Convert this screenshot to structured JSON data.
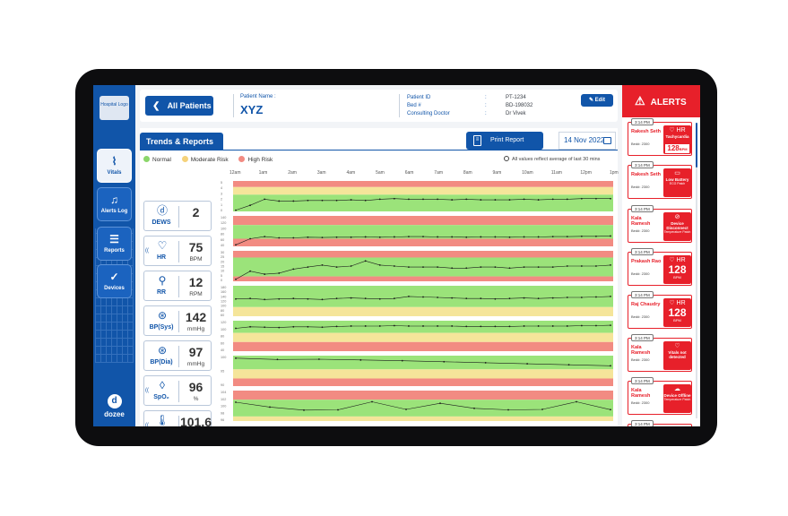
{
  "sidebar": {
    "logo_text": "Hospital Logo",
    "items": [
      {
        "label": "Vitals",
        "icon": "pulse-icon",
        "glyph": "⌇",
        "active": true
      },
      {
        "label": "Alerts Log",
        "icon": "bell-icon",
        "glyph": "♫",
        "active": false
      },
      {
        "label": "Reports",
        "icon": "document-icon",
        "glyph": "☰",
        "active": false
      },
      {
        "label": "Devices",
        "icon": "check-circle-icon",
        "glyph": "✓",
        "active": false
      }
    ],
    "brand": "dozee",
    "brand_glyph": "d"
  },
  "header": {
    "back_label": "All Patients",
    "back_glyph": "❮",
    "patient_name_label": "Patient Name :",
    "patient_name": "XYZ",
    "info_labels": [
      "Patient ID",
      "Bed #",
      "Consulting Doctor"
    ],
    "colon": ":",
    "info_values": [
      "PT-1234",
      "BD-198032",
      "Dr Vivek"
    ],
    "edit_label": "Edit",
    "edit_glyph": "✎"
  },
  "main": {
    "tab_label": "Trends & Reports",
    "print_label": "Print Report",
    "print_glyph": "≡",
    "date": "14 Nov 2022",
    "legend": [
      {
        "label": "Normal",
        "color": "#8bd66a"
      },
      {
        "label": "Moderate Risk",
        "color": "#f5d27a"
      },
      {
        "label": "High Risk",
        "color": "#f28b82"
      }
    ],
    "avg_note": "All values reflect average of last 30 mins",
    "times": [
      "12am",
      "1am",
      "2am",
      "3am",
      "4am",
      "5am",
      "6am",
      "7am",
      "8am",
      "9am",
      "10am",
      "11am",
      "12pm",
      "1pm"
    ]
  },
  "vitals": [
    {
      "name": "DEWS",
      "glyph": "ⓓ",
      "value": "2",
      "unit": "",
      "wave": false
    },
    {
      "name": "HR",
      "glyph": "♡",
      "value": "75",
      "unit": "BPM",
      "wave": true
    },
    {
      "name": "RR",
      "glyph": "⚲",
      "value": "12",
      "unit": "RPM",
      "wave": false
    },
    {
      "name": "BP(Sys)",
      "glyph": "⊛",
      "value": "142",
      "unit": "mmHg",
      "wave": false
    },
    {
      "name": "BP(Dia)",
      "glyph": "⊛",
      "value": "97",
      "unit": "mmHg",
      "wave": false
    },
    {
      "name": "SpO₂",
      "glyph": "◊",
      "value": "96",
      "unit": "%",
      "wave": true
    },
    {
      "name": "Temp",
      "glyph": "🌡",
      "value": "101.6",
      "unit": "°F",
      "wave": true
    }
  ],
  "wave_glyph": "((",
  "alerts": {
    "title": "ALERTS",
    "warn_glyph": "⚠",
    "items": [
      {
        "time": "3:14 PM",
        "name": "Rakesh Seth",
        "bed": "Bed#: 2300",
        "icon": "heart-icon",
        "glyph": "♡ HR",
        "title": "Tachycardia",
        "value": "128",
        "unit": "BPM",
        "sub": ""
      },
      {
        "time": "3:14 PM",
        "name": "Rakesh Seth",
        "bed": "Bed#: 2300",
        "icon": "battery-icon",
        "glyph": "▭",
        "title": "Low Battery",
        "value": "",
        "unit": "",
        "sub": "ECG Patch"
      },
      {
        "time": "3:14 PM",
        "name": "Kala Ramesh",
        "bed": "Bed#: 2300",
        "icon": "disconnect-icon",
        "glyph": "⊘",
        "title": "Device Disconnect",
        "value": "",
        "unit": "",
        "sub": "Temperature Patch"
      },
      {
        "time": "3:14 PM",
        "name": "Prakash Rao",
        "bed": "Bed#: 2300",
        "icon": "heart-icon",
        "glyph": "♡ HR",
        "title": "",
        "value": "128",
        "unit": "BPM",
        "sub": ""
      },
      {
        "time": "3:14 PM",
        "name": "Raj Chaudry",
        "bed": "Bed#: 2300",
        "icon": "heart-icon",
        "glyph": "♡ HR",
        "title": "",
        "value": "128",
        "unit": "BPM",
        "sub": ""
      },
      {
        "time": "3:14 PM",
        "name": "Kala Ramesh",
        "bed": "Bed#: 2300",
        "icon": "heart-icon",
        "glyph": "♡",
        "title": "Vitals not detected",
        "value": "",
        "unit": "",
        "sub": ""
      },
      {
        "time": "3:14 PM",
        "name": "Kala Ramesh",
        "bed": "Bed#: 2300",
        "icon": "cloud-offline-icon",
        "glyph": "☁",
        "title": "Device Offline",
        "value": "",
        "unit": "",
        "sub": "Temperature Patch"
      },
      {
        "time": "3:14 PM",
        "name": "",
        "bed": "",
        "icon": "heart-icon",
        "glyph": "♡ HR",
        "title": "",
        "value": "",
        "unit": "",
        "sub": ""
      }
    ]
  },
  "chart_data": [
    {
      "type": "line",
      "name": "DEWS",
      "ylim": [
        0,
        5
      ],
      "ticks": [
        "5",
        "4",
        "3",
        "2",
        "1",
        "0"
      ],
      "bands": [
        {
          "color": "#f28b82",
          "span": 0.2
        },
        {
          "color": "#f5e59a",
          "span": 0.25
        },
        {
          "color": "#9be37a",
          "span": 0.55
        }
      ],
      "values": [
        0.2,
        1.0,
        2.0,
        1.7,
        1.7,
        1.8,
        1.8,
        1.8,
        1.9,
        1.8,
        2.0,
        2.1,
        2.0,
        2.0,
        2.0,
        1.9,
        2.0,
        1.9,
        1.9,
        1.9,
        2.0,
        1.9,
        2.0,
        2.0,
        2.1,
        2.1,
        2.1
      ]
    },
    {
      "type": "line",
      "name": "HR",
      "ylim": [
        40,
        140
      ],
      "ticks": [
        "140",
        "120",
        "100",
        "80",
        "60",
        "40"
      ],
      "bands": [
        {
          "color": "#f28b82",
          "span": 0.3
        },
        {
          "color": "#9be37a",
          "span": 0.45
        },
        {
          "color": "#f28b82",
          "span": 0.25
        }
      ],
      "values": [
        45,
        65,
        72,
        68,
        68,
        70,
        69,
        70,
        70,
        71,
        70,
        71,
        72,
        72,
        71,
        71,
        70,
        71,
        71,
        70,
        71,
        71,
        72,
        72,
        73,
        73,
        74
      ]
    },
    {
      "type": "line",
      "name": "RR",
      "ylim": [
        0,
        30
      ],
      "ticks": [
        "30",
        "25",
        "20",
        "15",
        "10",
        "5",
        "0"
      ],
      "bands": [
        {
          "color": "#f28b82",
          "span": 0.22
        },
        {
          "color": "#9be37a",
          "span": 0.62
        },
        {
          "color": "#f28b82",
          "span": 0.16
        }
      ],
      "values": [
        2,
        10,
        7,
        8,
        12,
        14,
        16,
        14,
        15,
        20,
        16,
        15,
        14,
        14,
        14,
        13,
        13,
        14,
        14,
        13,
        14,
        14,
        14,
        15,
        15,
        15,
        16
      ]
    },
    {
      "type": "line",
      "name": "BP(Sys)",
      "ylim": [
        60,
        180
      ],
      "ticks": [
        "180",
        "160",
        "140",
        "120",
        "100",
        "80",
        "60"
      ],
      "bands": [
        {
          "color": "#9be37a",
          "span": 0.7
        },
        {
          "color": "#f5e59a",
          "span": 0.3
        }
      ],
      "values": [
        128,
        130,
        126,
        128,
        130,
        128,
        126,
        130,
        132,
        130,
        128,
        130,
        138,
        136,
        134,
        132,
        130,
        130,
        128,
        130,
        132,
        130,
        132,
        134,
        134,
        136,
        138
      ]
    },
    {
      "type": "line",
      "name": "BP(Dia)",
      "ylim": [
        40,
        120
      ],
      "ticks": [
        "120",
        "100",
        "80",
        "60",
        "40"
      ],
      "bands": [
        {
          "color": "#9be37a",
          "span": 0.4
        },
        {
          "color": "#f5e59a",
          "span": 0.3
        },
        {
          "color": "#f28b82",
          "span": 0.3
        }
      ],
      "values": [
        100,
        104,
        103,
        102,
        104,
        104,
        103,
        105,
        106,
        106,
        106,
        107,
        106,
        106,
        106,
        106,
        105,
        105,
        105,
        105,
        106,
        106,
        106,
        106,
        107,
        107,
        108
      ]
    },
    {
      "type": "line",
      "name": "SpO2",
      "ylim": [
        88,
        100
      ],
      "ticks": [
        "100",
        "95",
        "90"
      ],
      "bands": [
        {
          "color": "#9be37a",
          "span": 0.45
        },
        {
          "color": "#f5e59a",
          "span": 0.3
        },
        {
          "color": "#f28b82",
          "span": 0.25
        }
      ],
      "values": [
        99,
        98.5,
        98.6,
        98.3,
        98.0,
        97.6,
        97.2,
        96.8,
        96.4,
        96.0
      ]
    },
    {
      "type": "line",
      "name": "Temp",
      "ylim": [
        94,
        106
      ],
      "ticks": [
        "104",
        "102",
        "100",
        "98",
        "96"
      ],
      "bands": [
        {
          "color": "#f28b82",
          "span": 0.3
        },
        {
          "color": "#9be37a",
          "span": 0.55
        },
        {
          "color": "#f5e59a",
          "span": 0.15
        }
      ],
      "values": [
        101.4,
        99.5,
        98.3,
        98.4,
        101.6,
        98.6,
        101.0,
        99.0,
        98.4,
        98.6,
        101.6,
        98.5
      ]
    }
  ]
}
